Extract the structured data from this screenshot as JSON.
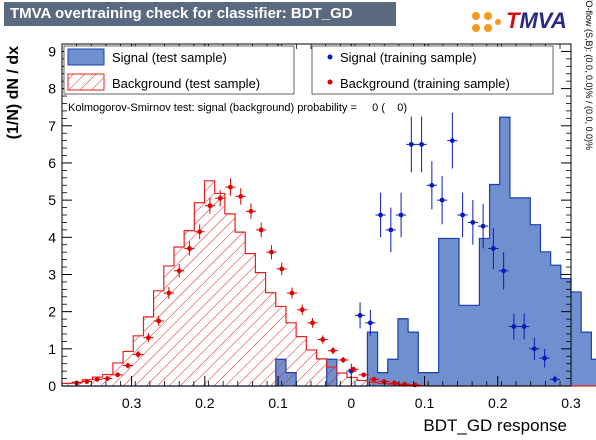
{
  "header": {
    "title": "TMVA overtraining check for classifier: BDT_GD",
    "logo_text_t": "T",
    "logo_text_mva": "MVA"
  },
  "colors": {
    "signal_fill": "#6f8fcf",
    "signal_line": "#1a3fb0",
    "background_line": "#e52020",
    "signal_marker": "#0a1ab8",
    "background_marker": "#e00000",
    "title_bar": "#5a6a80"
  },
  "legend": {
    "signal_test": "Signal (test sample)",
    "background_test": "Background (test sample)",
    "signal_train": "Signal (training sample)",
    "background_train": "Background (training sample)"
  },
  "ks_text": "Kolmogorov-Smirnov test: signal (background) probability =     0 (    0)",
  "side_text": "U/O-flow (S,B): (0.0, 0.0)% / (0.0, 0.0)%",
  "chart_data": {
    "type": "bar",
    "xlabel": "BDT_GD response",
    "ylabel": "(1/N) dN / dx",
    "xlim": [
      -0.395,
      0.3
    ],
    "ylim": [
      0,
      9.2
    ],
    "x_ticks": [
      -0.3,
      -0.2,
      -0.1,
      0,
      0.1,
      0.2,
      0.3
    ],
    "x_tick_labels": [
      "0.3",
      "0.2",
      "0.1",
      "0",
      "0.1",
      "0.2",
      "0.3"
    ],
    "y_ticks": [
      0,
      1,
      2,
      3,
      4,
      5,
      6,
      7,
      8,
      9
    ],
    "grid": false,
    "legend_position": "top",
    "bin_width": 0.0139,
    "bin_start": -0.395,
    "series": [
      {
        "name": "Signal (test sample)",
        "kind": "hist-filled",
        "values": [
          0,
          0,
          0,
          0,
          0,
          0,
          0,
          0,
          0,
          0,
          0,
          0,
          0,
          0,
          0,
          0,
          0,
          0,
          0,
          0,
          0,
          0.72,
          0.36,
          0,
          0,
          0,
          0.72,
          0,
          0,
          0,
          1.45,
          0.36,
          0.72,
          1.81,
          1.45,
          0.36,
          0.36,
          3.97,
          3.97,
          2.17,
          2.17,
          3.97,
          5.42,
          7.23,
          5.06,
          5.06,
          4.34,
          3.61,
          3.25,
          2.89,
          2.53,
          1.45,
          0.72,
          0.72,
          0.36,
          0.72,
          0.72,
          0.36,
          0
        ]
      },
      {
        "name": "Background (test sample)",
        "kind": "hist-hatched",
        "values": [
          0.07,
          0.1,
          0.17,
          0.24,
          0.31,
          0.62,
          0.93,
          1.35,
          1.86,
          2.56,
          3.23,
          3.74,
          4.18,
          4.93,
          5.52,
          5.18,
          4.63,
          4.14,
          3.56,
          3.05,
          2.51,
          2.14,
          1.7,
          1.33,
          0.97,
          0.73,
          0.51,
          0.35,
          0.23,
          0.15,
          0.1,
          0.07,
          0.05,
          0.03,
          0.02,
          0.01,
          0,
          0,
          0,
          0,
          0,
          0,
          0,
          0,
          0,
          0,
          0,
          0,
          0,
          0,
          0,
          0,
          0,
          0,
          0,
          0,
          0,
          0,
          0
        ]
      },
      {
        "name": "Signal (training sample)",
        "kind": "points",
        "x": [
          0.0,
          0.012,
          0.026,
          0.04,
          0.054,
          0.068,
          0.082,
          0.096,
          0.11,
          0.124,
          0.138,
          0.152,
          0.166,
          0.18,
          0.194,
          0.208,
          0.222,
          0.236,
          0.25,
          0.264,
          0.278
        ],
        "y": [
          0.4,
          1.9,
          1.7,
          4.6,
          4.2,
          4.6,
          6.5,
          6.5,
          5.4,
          5.0,
          6.6,
          4.6,
          4.4,
          4.3,
          3.7,
          3.1,
          1.6,
          1.6,
          1.0,
          0.75,
          0.18
        ],
        "err": [
          0.2,
          0.35,
          0.35,
          0.6,
          0.6,
          0.6,
          0.75,
          0.75,
          0.65,
          0.65,
          0.75,
          0.6,
          0.6,
          0.6,
          0.55,
          0.5,
          0.35,
          0.35,
          0.3,
          0.25,
          0.1
        ]
      },
      {
        "name": "Background (training sample)",
        "kind": "points",
        "x": [
          -0.375,
          -0.361,
          -0.347,
          -0.333,
          -0.319,
          -0.305,
          -0.291,
          -0.277,
          -0.263,
          -0.249,
          -0.235,
          -0.221,
          -0.207,
          -0.193,
          -0.179,
          -0.165,
          -0.151,
          -0.137,
          -0.123,
          -0.109,
          -0.095,
          -0.081,
          -0.067,
          -0.053,
          -0.039,
          -0.025,
          -0.011,
          0.003,
          0.017,
          0.031,
          0.045,
          0.059,
          0.073,
          0.087
        ],
        "y": [
          0.08,
          0.12,
          0.18,
          0.2,
          0.3,
          0.55,
          0.85,
          1.3,
          1.75,
          2.5,
          3.1,
          3.7,
          4.15,
          4.85,
          5.05,
          5.35,
          5.1,
          4.7,
          4.2,
          3.6,
          3.15,
          2.5,
          2.05,
          1.7,
          1.25,
          0.95,
          0.7,
          0.45,
          0.3,
          0.18,
          0.12,
          0.08,
          0.05,
          0.03
        ],
        "err": [
          0.03,
          0.04,
          0.05,
          0.05,
          0.06,
          0.08,
          0.1,
          0.12,
          0.14,
          0.16,
          0.18,
          0.19,
          0.2,
          0.22,
          0.22,
          0.23,
          0.22,
          0.21,
          0.2,
          0.19,
          0.17,
          0.15,
          0.14,
          0.13,
          0.11,
          0.1,
          0.08,
          0.07,
          0.05,
          0.04,
          0.03,
          0.03,
          0.02,
          0.02
        ]
      }
    ]
  }
}
